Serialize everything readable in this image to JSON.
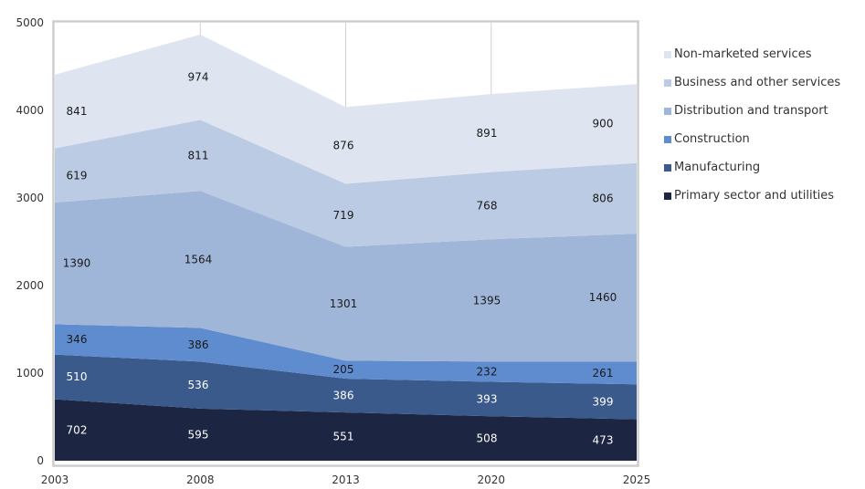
{
  "chart_data": {
    "type": "area",
    "stacked": true,
    "x": [
      "2003",
      "2008",
      "2013",
      "2020",
      "2025"
    ],
    "ylim": [
      0,
      5000
    ],
    "yticks": [
      0,
      1000,
      2000,
      3000,
      4000,
      5000
    ],
    "grid": "vertical",
    "legend_position": "right",
    "series": [
      {
        "name": "Primary sector and utilities",
        "values": [
          702,
          595,
          551,
          508,
          473
        ],
        "color": "#1c2541"
      },
      {
        "name": "Manufacturing",
        "values": [
          510,
          536,
          386,
          393,
          399
        ],
        "color": "#3a5a8c"
      },
      {
        "name": "Construction",
        "values": [
          346,
          386,
          205,
          232,
          261
        ],
        "color": "#5f8ccf"
      },
      {
        "name": "Distribution and transport",
        "values": [
          1390,
          1564,
          1301,
          1395,
          1460
        ],
        "color": "#9fb6d8"
      },
      {
        "name": "Business and other services",
        "values": [
          619,
          811,
          719,
          768,
          806
        ],
        "color": "#bccbe4"
      },
      {
        "name": "Non-marketed services",
        "values": [
          841,
          974,
          876,
          891,
          900
        ],
        "color": "#dfe5f0"
      }
    ]
  }
}
